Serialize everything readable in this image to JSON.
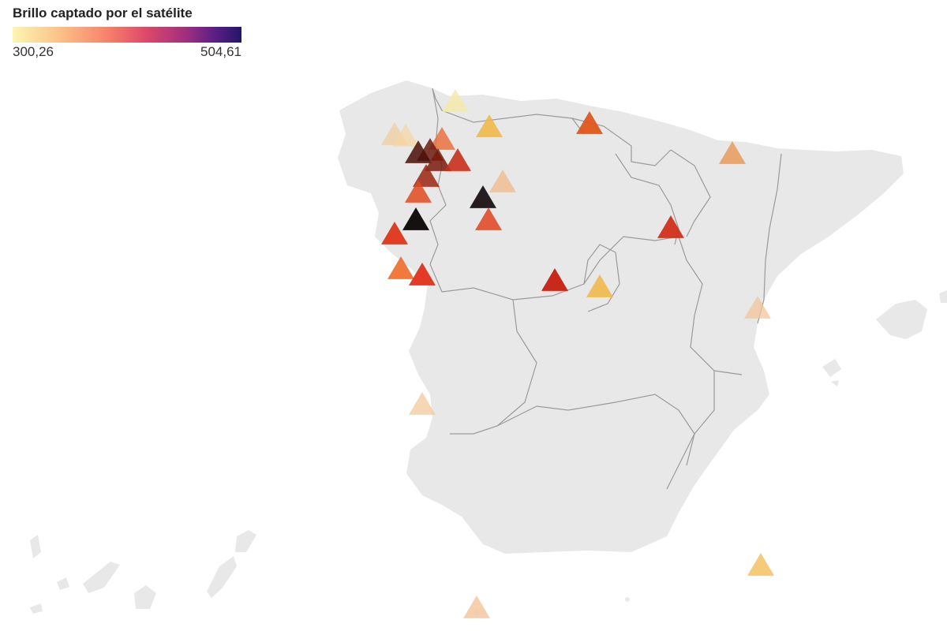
{
  "legend": {
    "title": "Brillo captado por el satélite",
    "min_label": "300,26",
    "max_label": "504,61",
    "scale_min": 300.26,
    "scale_max": 504.61,
    "colors": [
      "#fcf6b3",
      "#fbbd85",
      "#f6806a",
      "#de4968",
      "#a3307e",
      "#5c1f86",
      "#231668"
    ]
  },
  "map": {
    "region": "Spain",
    "land_color": "#e8e8e8",
    "border_color": "#9a9a9a",
    "marker_shape": "triangle"
  }
}
